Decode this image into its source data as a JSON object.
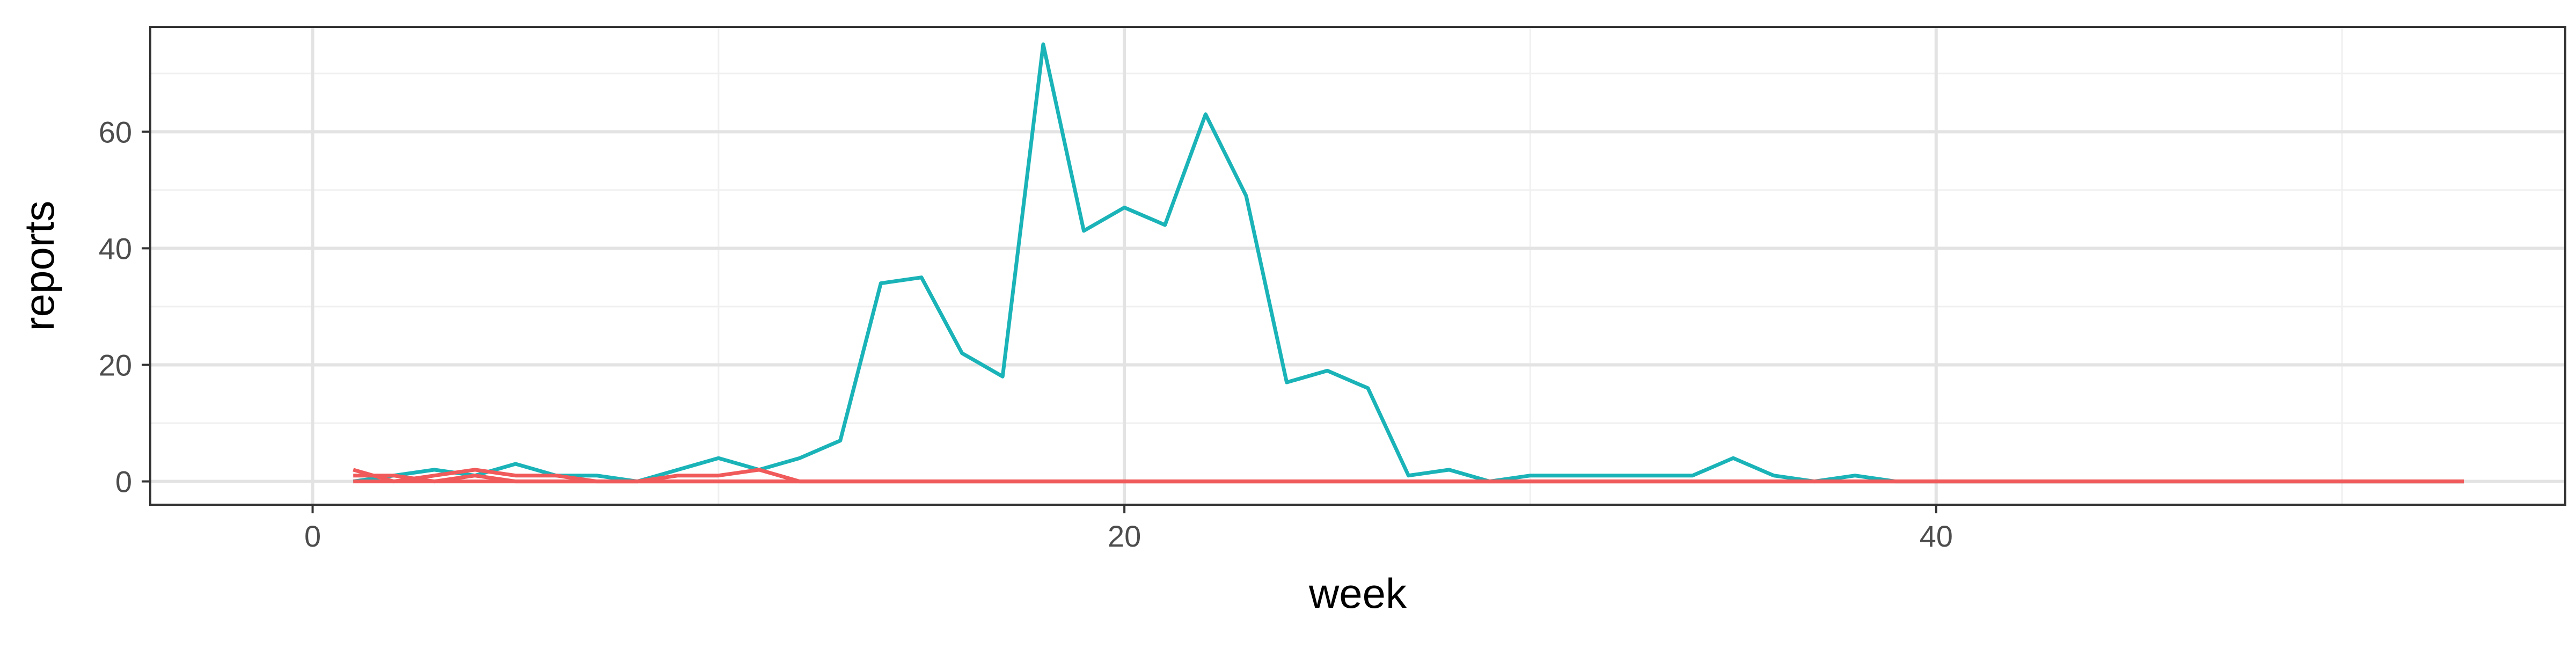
{
  "chart_data": {
    "type": "line",
    "title": "",
    "xlabel": "week",
    "ylabel": "reports",
    "xlim": [
      -4,
      55.5
    ],
    "ylim": [
      -4,
      78
    ],
    "x_ticks": [
      0,
      20,
      40
    ],
    "y_ticks": [
      0,
      20,
      40,
      60
    ],
    "x_minor_ticks": [
      10,
      30,
      50
    ],
    "y_minor_ticks": [
      10,
      30,
      50,
      70
    ],
    "grid": true,
    "legend": "none",
    "series": [
      {
        "color": "#1ab3b8",
        "x": [
          1,
          2,
          3,
          4,
          5,
          6,
          7,
          8,
          9,
          10,
          11,
          12,
          13,
          14,
          15,
          16,
          17,
          18,
          19,
          20,
          21,
          22,
          23,
          24,
          25,
          26,
          27,
          28,
          29,
          30,
          31,
          32,
          33,
          34,
          35,
          36,
          37,
          38,
          39,
          40,
          41,
          42,
          43,
          44,
          45,
          46,
          47,
          48,
          49,
          50,
          51,
          52,
          53
        ],
        "values": [
          0,
          1,
          2,
          1,
          3,
          1,
          1,
          0,
          2,
          4,
          2,
          4,
          7,
          34,
          35,
          22,
          18,
          75,
          43,
          47,
          44,
          63,
          49,
          17,
          19,
          16,
          1,
          2,
          0,
          1,
          1,
          1,
          1,
          1,
          4,
          1,
          0,
          1,
          0,
          0,
          0,
          0,
          0,
          0,
          0,
          0,
          0,
          0,
          0,
          0,
          0,
          0,
          0
        ]
      },
      {
        "color": "#f05a5a",
        "x": [
          1,
          2,
          3,
          4,
          5,
          6,
          7,
          8,
          9,
          10,
          11,
          12,
          13,
          14,
          15,
          16,
          17,
          18,
          19,
          20,
          21,
          22,
          23,
          24,
          25,
          26,
          27,
          28,
          29,
          30,
          31,
          32,
          33,
          34,
          35,
          36,
          37,
          38,
          39,
          40,
          41,
          42,
          43,
          44,
          45,
          46,
          47,
          48,
          49,
          50,
          51,
          52,
          53
        ],
        "values": [
          2,
          0,
          1,
          2,
          1,
          1,
          0,
          0,
          1,
          1,
          2,
          0,
          0,
          0,
          0,
          0,
          0,
          0,
          0,
          0,
          0,
          0,
          0,
          0,
          0,
          0,
          0,
          0,
          0,
          0,
          0,
          0,
          0,
          0,
          0,
          0,
          0,
          0,
          0,
          0,
          0,
          0,
          0,
          0,
          0,
          0,
          0,
          0,
          0,
          0,
          0,
          0,
          0
        ]
      },
      {
        "color": "#f05a5a",
        "x": [
          1,
          2,
          3,
          4,
          5,
          6,
          7,
          8,
          9,
          10,
          11,
          12,
          13,
          14,
          15,
          16,
          17,
          18,
          19,
          20,
          21,
          22,
          23,
          24,
          25,
          26,
          27,
          28,
          29,
          30,
          31,
          32,
          33,
          34,
          35,
          36,
          37,
          38,
          39,
          40,
          41,
          42,
          43,
          44,
          45,
          46,
          47,
          48,
          49,
          50,
          51,
          52,
          53
        ],
        "values": [
          1,
          1,
          0,
          1,
          0,
          0,
          0,
          0,
          0,
          0,
          0,
          0,
          0,
          0,
          0,
          0,
          0,
          0,
          0,
          0,
          0,
          0,
          0,
          0,
          0,
          0,
          0,
          0,
          0,
          0,
          0,
          0,
          0,
          0,
          0,
          0,
          0,
          0,
          0,
          0,
          0,
          0,
          0,
          0,
          0,
          0,
          0,
          0,
          0,
          0,
          0,
          0,
          0
        ]
      },
      {
        "color": "#f05a5a",
        "x": [
          1,
          2,
          3,
          4,
          5,
          6,
          7,
          8,
          9,
          10,
          11,
          12,
          13,
          14,
          15,
          16,
          17,
          18,
          19,
          20,
          21,
          22,
          23,
          24,
          25,
          26,
          27,
          28,
          29,
          30,
          31,
          32,
          33,
          34,
          35,
          36,
          37,
          38,
          39,
          40,
          41,
          42,
          43,
          44,
          45,
          46,
          47,
          48,
          49,
          50,
          51,
          52,
          53
        ],
        "values": [
          0,
          0,
          0,
          0,
          0,
          0,
          0,
          0,
          0,
          0,
          0,
          0,
          0,
          0,
          0,
          0,
          0,
          0,
          0,
          0,
          0,
          0,
          0,
          0,
          0,
          0,
          0,
          0,
          0,
          0,
          0,
          0,
          0,
          0,
          0,
          0,
          0,
          0,
          0,
          0,
          0,
          0,
          0,
          0,
          0,
          0,
          0,
          0,
          0,
          0,
          0,
          0,
          0
        ]
      }
    ]
  }
}
